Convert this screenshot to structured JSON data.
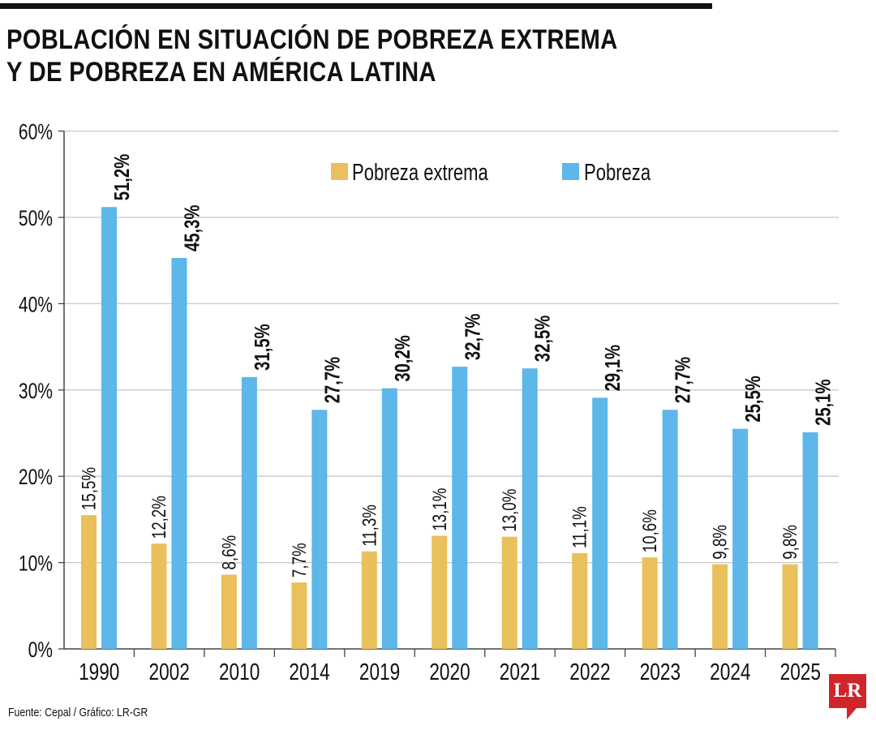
{
  "title_line1": "POBLACIÓN EN SITUACIÓN DE POBREZA EXTREMA",
  "title_line2": "Y DE POBREZA EN AMÉRICA LATINA",
  "source": "Fuente: Cepal / Gráfico: LR-GR",
  "logo_text": "LR",
  "colors": {
    "extreme": "#E9C05B",
    "poverty": "#5DB7E8",
    "grid": "#c8c8c8",
    "axis": "#444444"
  },
  "chart_data": {
    "type": "bar",
    "categories": [
      "1990",
      "2002",
      "2010",
      "2014",
      "2019",
      "2020",
      "2021",
      "2022",
      "2023",
      "2024",
      "2025"
    ],
    "series": [
      {
        "name": "Pobreza extrema",
        "values": [
          15.5,
          12.2,
          8.6,
          7.7,
          11.3,
          13.1,
          13.0,
          11.1,
          10.6,
          9.8,
          9.8
        ],
        "labels": [
          "15,5%",
          "12,2%",
          "8,6%",
          "7,7%",
          "11,3%",
          "13,1%",
          "13,0%",
          "11,1%",
          "10,6%",
          "9,8%",
          "9,8%"
        ]
      },
      {
        "name": "Pobreza",
        "values": [
          51.2,
          45.3,
          31.5,
          27.7,
          30.2,
          32.7,
          32.5,
          29.1,
          27.7,
          25.5,
          25.1
        ],
        "labels": [
          "51,2%",
          "45,3%",
          "31,5%",
          "27,7%",
          "30,2%",
          "32,7%",
          "32,5%",
          "29,1%",
          "27,7%",
          "25,5%",
          "25,1%"
        ]
      }
    ],
    "ylim": [
      0,
      60
    ],
    "yticks": [
      0,
      10,
      20,
      30,
      40,
      50,
      60
    ],
    "ytick_labels": [
      "0%",
      "10%",
      "20%",
      "30%",
      "40%",
      "50%",
      "60%"
    ],
    "grid": true,
    "legend_placement": "top"
  }
}
